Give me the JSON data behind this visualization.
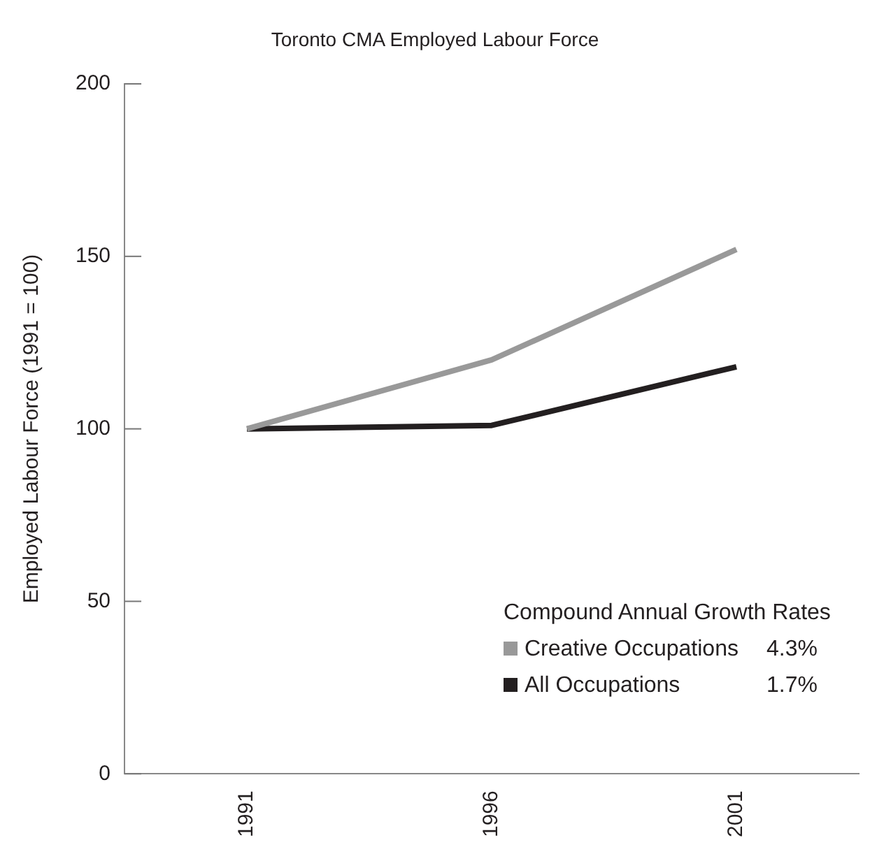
{
  "chart_data": {
    "type": "line",
    "title": "Toronto CMA Employed Labour Force",
    "ylabel": "Employed Labour Force (1991 = 100)",
    "legend_title": "Compound Annual Growth Rates",
    "categories": [
      "1991",
      "1996",
      "2001"
    ],
    "series": [
      {
        "name": "Creative Occupations",
        "color": "#999999",
        "values": [
          100,
          120,
          152
        ]
      },
      {
        "name": "All Occupations",
        "color": "#231f20",
        "values": [
          100,
          101,
          118
        ]
      }
    ],
    "annotations": [
      "4.3%",
      "1.7%"
    ],
    "ylim": [
      0,
      200
    ],
    "yticks": [
      0,
      50,
      100,
      150,
      200
    ],
    "grid": false,
    "legend": "bottom right",
    "marker": "none",
    "line_style": "solid"
  }
}
